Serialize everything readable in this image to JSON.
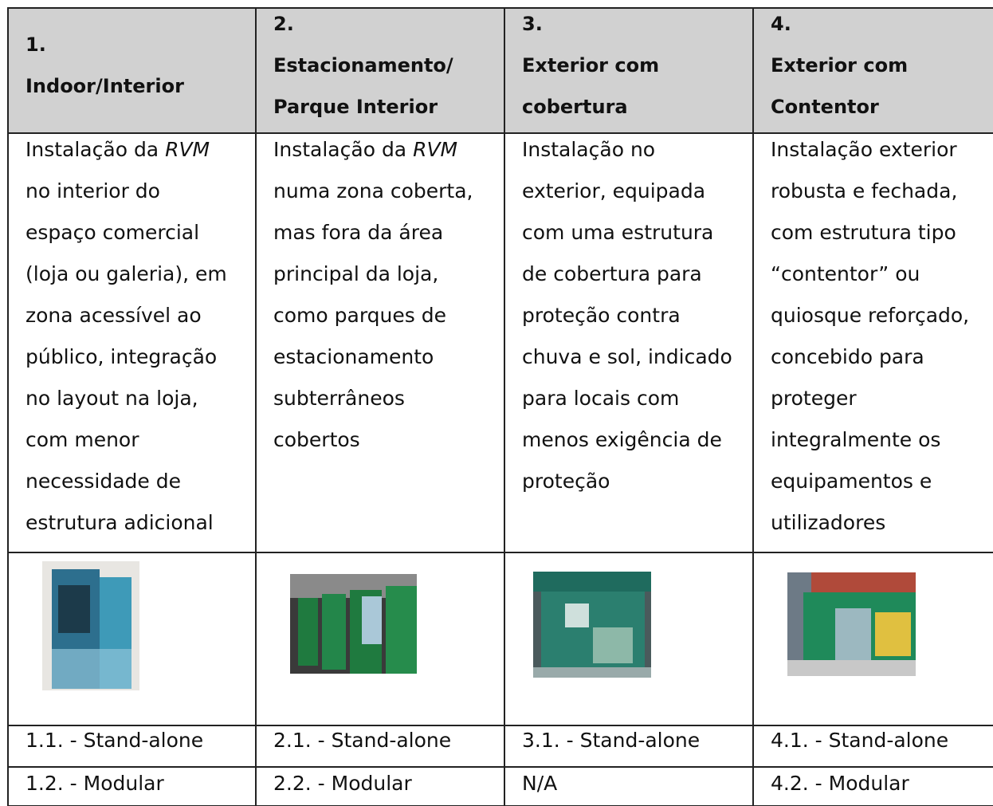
{
  "table": {
    "header": [
      [
        "1.",
        "Indoor/Interior"
      ],
      [
        "2.",
        "Estacionamento/",
        "Parque Interior"
      ],
      [
        "3.",
        "Exterior com",
        "cobertura"
      ],
      [
        "4.",
        "Exterior com",
        "Contentor"
      ]
    ],
    "descriptions": [
      [
        [
          "Instalação da ",
          {
            "italic": "RVM"
          }
        ],
        "no interior do",
        "espaço comercial",
        "(loja ou galeria), em",
        "zona acessível ao",
        "público, integração",
        "no layout na loja,",
        "com menor",
        "necessidade de",
        "estrutura adicional"
      ],
      [
        [
          "Instalação da ",
          {
            "italic": "RVM"
          }
        ],
        "numa zona coberta,",
        "mas fora da área",
        "principal da loja,",
        "como parques de",
        "estacionamento",
        "subterrâneos",
        "cobertos"
      ],
      [
        "Instalação no",
        "exterior, equipada",
        "com uma estrutura",
        "de cobertura para",
        "proteção contra",
        "chuva e sol, indicado",
        "para locais com",
        "menos exigência de",
        "proteção"
      ],
      [
        "Instalação exterior",
        "robusta e fechada,",
        "com estrutura tipo",
        "“contentor” ou",
        "quiosque reforçado,",
        "concebido para",
        "proteger",
        "integralmente os",
        "equipamentos e",
        "utilizadores"
      ]
    ],
    "variants": [
      [
        "1.1. - Stand-alone",
        "2.1. - Stand-alone",
        "3.1. - Stand-alone",
        "4.1. - Stand-alone"
      ],
      [
        "1.2. - Modular",
        "2.2. - Modular",
        "N/A",
        "4.2. - Modular"
      ]
    ]
  }
}
